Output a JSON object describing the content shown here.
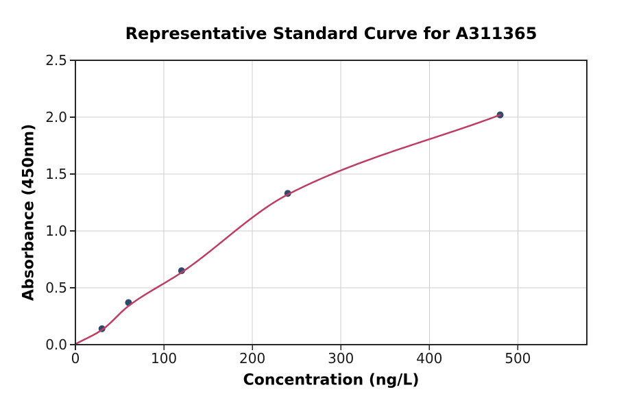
{
  "chart_data": {
    "type": "scatter",
    "title": "Representative Standard Curve for A311365",
    "xlabel": "Concentration (ng/L)",
    "ylabel": "Absorbance (450nm)",
    "xlim": [
      0,
      578
    ],
    "ylim": [
      0,
      2.5
    ],
    "grid": true,
    "legend": "none",
    "x_ticks": [
      {
        "value": 0,
        "label": "0"
      },
      {
        "value": 100,
        "label": "100"
      },
      {
        "value": 200,
        "label": "200"
      },
      {
        "value": 300,
        "label": "300"
      },
      {
        "value": 400,
        "label": "400"
      },
      {
        "value": 500,
        "label": "500"
      }
    ],
    "y_ticks": [
      {
        "value": 0.0,
        "label": "0.0"
      },
      {
        "value": 0.5,
        "label": "0.5"
      },
      {
        "value": 1.0,
        "label": "1.0"
      },
      {
        "value": 1.5,
        "label": "1.5"
      },
      {
        "value": 2.0,
        "label": "2.0"
      },
      {
        "value": 2.5,
        "label": "2.5"
      }
    ],
    "series": [
      {
        "name": "standard-points",
        "kind": "scatter",
        "x": [
          30,
          60,
          120,
          240,
          480
        ],
        "y": [
          0.14,
          0.37,
          0.65,
          1.33,
          2.02
        ],
        "color": "#2e4a6b",
        "marker_radius": 5
      },
      {
        "name": "fit-curve",
        "kind": "smooth-line",
        "x": [
          0,
          30,
          60,
          120,
          240,
          480
        ],
        "y": [
          0.005,
          0.13,
          0.34,
          0.635,
          1.32,
          2.02
        ],
        "color": "#bc3e62",
        "line_width": 2.5
      }
    ],
    "colors": {
      "background": "#ffffff",
      "grid": "#cccccc",
      "spine": "#262626",
      "tick_text": "#1a1a1a",
      "title_text": "#000000"
    }
  }
}
